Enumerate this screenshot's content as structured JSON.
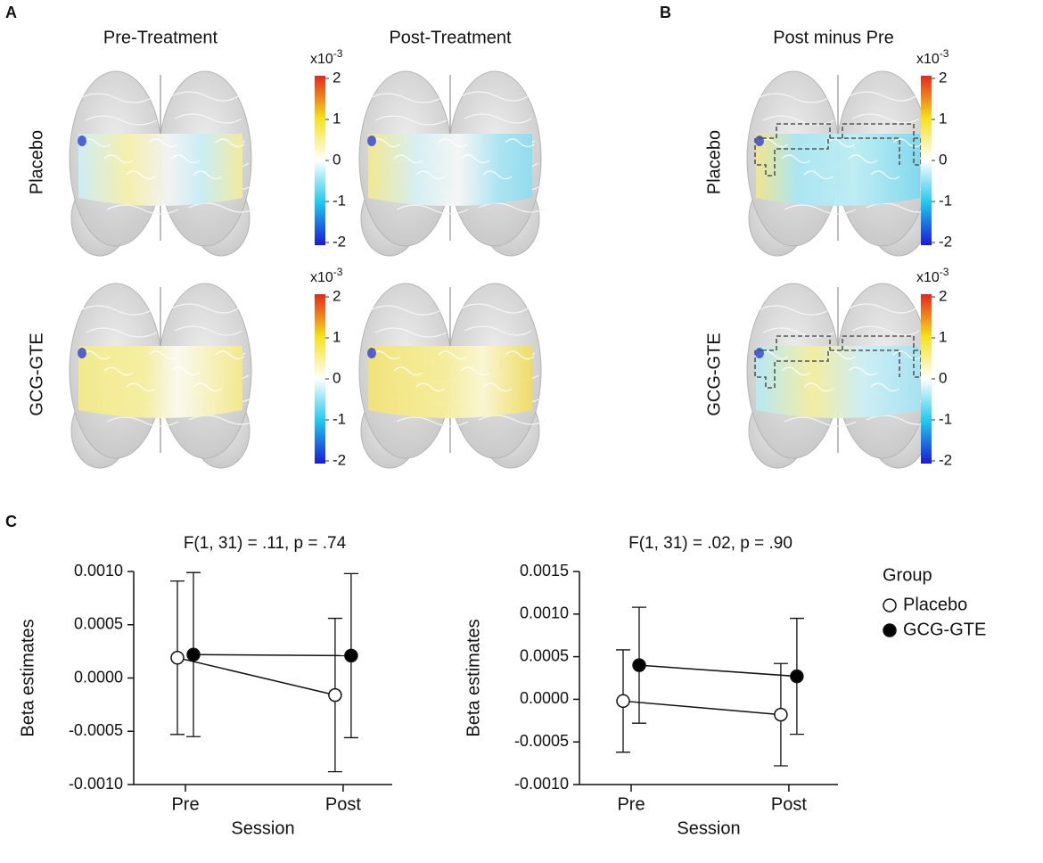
{
  "panel_labels": [
    "A",
    "B",
    "C"
  ],
  "column_titles": [
    "Pre-Treatment",
    "Post-Treatment",
    "Post minus Pre"
  ],
  "row_labels": [
    "Placebo",
    "GCG-GTE"
  ],
  "colorbar": {
    "multiplier": "x10",
    "exponent": "-3",
    "ticks": [
      2,
      1,
      0,
      -1,
      -2
    ]
  },
  "legend_title": "Group",
  "chart_data": [
    {
      "type": "line",
      "title": "F(1, 31) = .11, p = .74",
      "xlabel": "Session",
      "ylabel": "Beta estimates",
      "categories": [
        "Pre",
        "Post"
      ],
      "ylim": [
        -0.001,
        0.001
      ],
      "yticks": [
        {
          "value": 0.001,
          "label": "0.0010"
        },
        {
          "value": 0.0005,
          "label": "0.0005"
        },
        {
          "value": 0,
          "label": "0.0000"
        },
        {
          "value": -0.0005,
          "label": "-0.0005"
        },
        {
          "value": -0.001,
          "label": "-0.0010"
        }
      ],
      "series": [
        {
          "name": "Placebo",
          "color": "#ffffff",
          "values": [
            0.00019,
            -0.00016
          ],
          "errors": [
            0.00072,
            0.00072
          ]
        },
        {
          "name": "GCG-GTE",
          "color": "#000000",
          "values": [
            0.00022,
            0.00021
          ],
          "errors": [
            0.00077,
            0.00077
          ]
        }
      ]
    },
    {
      "type": "line",
      "title": "F(1, 31) =  .02, p = .90",
      "xlabel": "Session",
      "ylabel": "Beta estimates",
      "categories": [
        "Pre",
        "Post"
      ],
      "ylim": [
        -0.001,
        0.0015
      ],
      "yticks": [
        {
          "value": 0.0015,
          "label": "0.0015"
        },
        {
          "value": 0.001,
          "label": "0.0010"
        },
        {
          "value": 0.0005,
          "label": "0.0005"
        },
        {
          "value": 0,
          "label": "0.0000"
        },
        {
          "value": -0.0005,
          "label": "-0.0005"
        },
        {
          "value": -0.001,
          "label": "-0.0010"
        }
      ],
      "series": [
        {
          "name": "Placebo",
          "color": "#ffffff",
          "values": [
            -2e-05,
            -0.00018
          ],
          "errors": [
            0.0006,
            0.0006
          ]
        },
        {
          "name": "GCG-GTE",
          "color": "#000000",
          "values": [
            0.0004,
            0.00027
          ],
          "errors": [
            0.00068,
            0.00068
          ]
        }
      ]
    }
  ]
}
